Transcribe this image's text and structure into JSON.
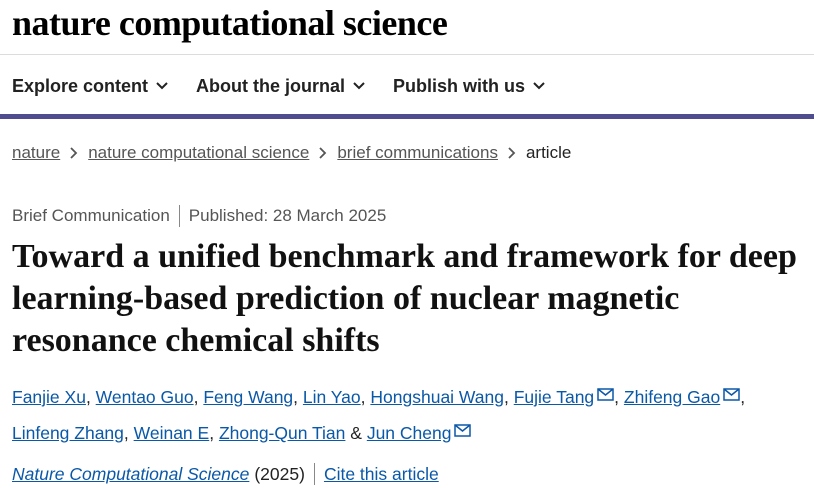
{
  "site": {
    "logo": "nature computational science"
  },
  "nav": {
    "items": [
      {
        "label": "Explore content",
        "icon": "chevron-down-icon"
      },
      {
        "label": "About the journal",
        "icon": "chevron-down-icon"
      },
      {
        "label": "Publish with us",
        "icon": "chevron-down-icon"
      }
    ]
  },
  "colors": {
    "accent_bar": "#4f4c8f",
    "link": "#0a58a8"
  },
  "breadcrumb": {
    "items": [
      "nature",
      "nature computational science",
      "brief communications"
    ],
    "current": "article"
  },
  "article": {
    "type": "Brief Communication",
    "published": "Published: 28 March 2025",
    "title": "Toward a unified benchmark and framework for deep learning-based prediction of nuclear magnetic resonance chemical shifts",
    "authors": [
      {
        "name": "Fanjie Xu",
        "mail": false,
        "sep": ", "
      },
      {
        "name": "Wentao Guo",
        "mail": false,
        "sep": ", "
      },
      {
        "name": "Feng Wang",
        "mail": false,
        "sep": ", "
      },
      {
        "name": "Lin Yao",
        "mail": false,
        "sep": ", "
      },
      {
        "name": "Hongshuai Wang",
        "mail": false,
        "sep": ", "
      },
      {
        "name": "Fujie Tang",
        "mail": true,
        "sep": ", "
      },
      {
        "name": "Zhifeng Gao",
        "mail": true,
        "sep": ", "
      },
      {
        "name": "Linfeng Zhang",
        "mail": false,
        "sep": ", "
      },
      {
        "name": "Weinan E",
        "mail": false,
        "sep": ", "
      },
      {
        "name": "Zhong-Qun Tian",
        "mail": false,
        "sep": " & "
      },
      {
        "name": "Jun Cheng",
        "mail": true,
        "sep": ""
      }
    ],
    "journal": "Nature Computational Science",
    "year": "(2025)",
    "cite_label": "Cite this article"
  }
}
